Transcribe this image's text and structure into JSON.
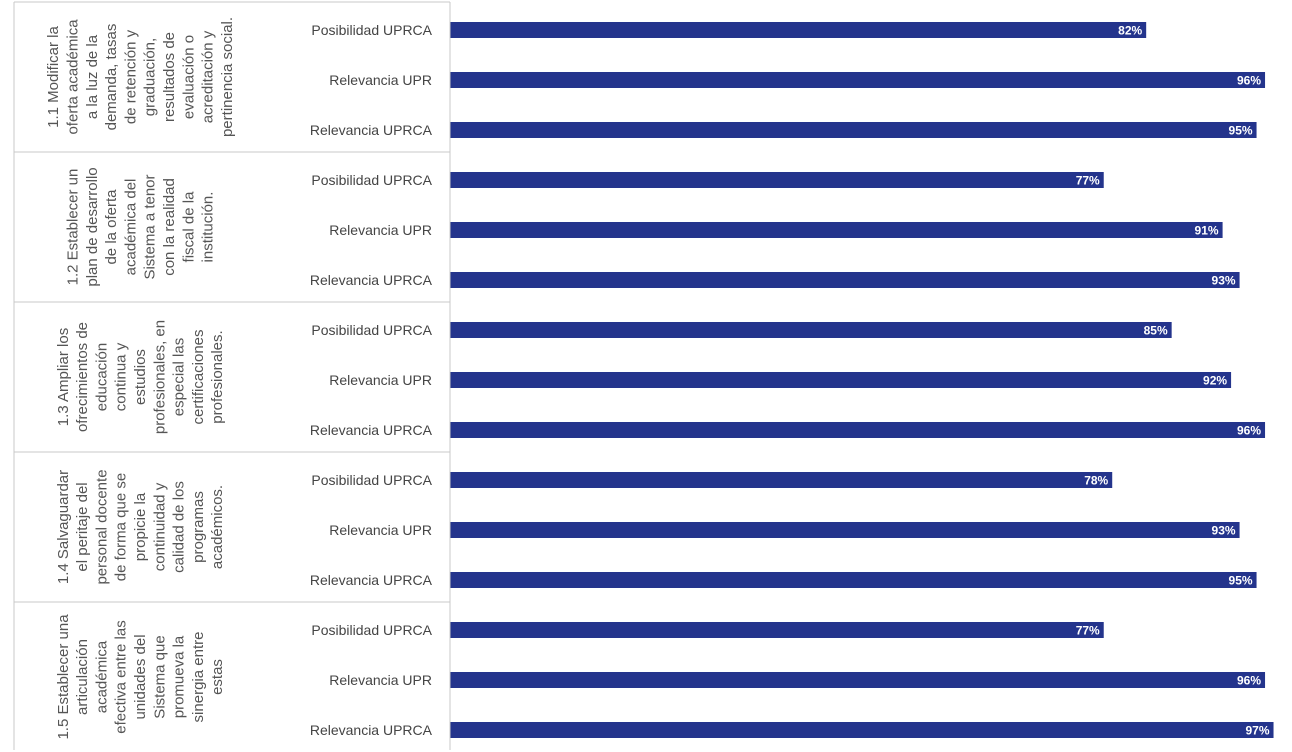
{
  "chart_data": {
    "type": "bar",
    "orientation": "horizontal",
    "value_format": "percent",
    "xlim": [
      0,
      100
    ],
    "grid": false,
    "bar_color": "#24348C",
    "groups": [
      {
        "label": "1.1 Modificar la oferta académica a la luz de la demanda, tasas de retención y graduación, resultados de evaluación o acreditación y pertinencia social.",
        "label_lines": [
          "1.1 Modificar la",
          "oferta académica",
          "a la luz de la",
          "demanda, tasas",
          "de retención y",
          "graduación,",
          "resultados de",
          "evaluación o",
          "acreditación y",
          "pertinencia social."
        ],
        "categories": [
          "Posibilidad UPRCA",
          "Relevancia UPR",
          "Relevancia UPRCA"
        ],
        "values": [
          82,
          96,
          95
        ],
        "value_labels": [
          "82%",
          "96%",
          "95%"
        ]
      },
      {
        "label": "1.2 Establecer un plan de desarrollo de la oferta académica del Sistema a tenor con la realidad fiscal de la institución.",
        "label_lines": [
          "1.2 Establecer un",
          "plan de desarrollo",
          "de la oferta",
          "académica del",
          "Sistema a tenor",
          "con la realidad",
          "fiscal de la",
          "institución."
        ],
        "categories": [
          "Posibilidad UPRCA",
          "Relevancia UPR",
          "Relevancia UPRCA"
        ],
        "values": [
          77,
          91,
          93
        ],
        "value_labels": [
          "77%",
          "91%",
          "93%"
        ]
      },
      {
        "label": "1.3 Ampliar los ofrecimientos de educación continua y estudios profesionales, en especial las certificaciones profesionales.",
        "label_lines": [
          "1.3 Ampliar los",
          "ofrecimientos de",
          "educación",
          "continua y",
          "estudios",
          "profesionales, en",
          "especial las",
          "certificaciones",
          "profesionales."
        ],
        "categories": [
          "Posibilidad UPRCA",
          "Relevancia UPR",
          "Relevancia UPRCA"
        ],
        "values": [
          85,
          92,
          96
        ],
        "value_labels": [
          "85%",
          "92%",
          "96%"
        ]
      },
      {
        "label": "1.4 Salvaguardar el peritaje del personal docente de forma que se propicie la continuidad y calidad de los programas académicos.",
        "label_lines": [
          "1.4 Salvaguardar",
          "el peritaje del",
          "personal docente",
          "de forma que se",
          "propicie la",
          "continuidad y",
          "calidad de los",
          "programas",
          "académicos."
        ],
        "categories": [
          "Posibilidad UPRCA",
          "Relevancia UPR",
          "Relevancia UPRCA"
        ],
        "values": [
          78,
          93,
          95
        ],
        "value_labels": [
          "78%",
          "93%",
          "95%"
        ]
      },
      {
        "label": "1.5 Establecer una articulación académica efectiva entre las unidades del Sistema que promueva la sinergia entre estas",
        "label_lines": [
          "1.5 Establecer una",
          "articulación",
          "académica",
          "efectiva entre las",
          "unidades del",
          "Sistema que",
          "promueva la",
          "sinergia entre",
          "estas"
        ],
        "categories": [
          "Posibilidad UPRCA",
          "Relevancia UPR",
          "Relevancia UPRCA"
        ],
        "values": [
          77,
          96,
          97
        ],
        "value_labels": [
          "77%",
          "96%",
          "97%"
        ]
      }
    ]
  }
}
